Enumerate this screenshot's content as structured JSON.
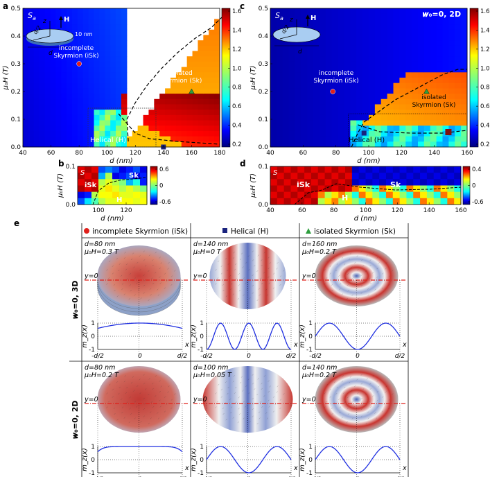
{
  "panel_letters": {
    "a": "a",
    "b": "b",
    "c": "c",
    "d": "d",
    "e": "e"
  },
  "panel_a": {
    "tag": "S",
    "tag_sub": "a",
    "condition": "𝒘₀=0, 3D",
    "ylabel": "μ₀H (T)",
    "xlabel": "d (nm)",
    "xticks": [
      "40",
      "60",
      "80",
      "100",
      "120",
      "140",
      "160",
      "180"
    ],
    "yticks": [
      "0.0",
      "0.1",
      "0.2",
      "0.3",
      "0.4",
      "0.5"
    ],
    "colorbar_ticks": [
      "1.6",
      "1.4",
      "1.2",
      "1.0",
      "0.8",
      "0.6",
      "0.4",
      "0.2"
    ],
    "inset": {
      "z": "z",
      "H": "H",
      "d2": "d/2",
      "thick": "10 nm",
      "d": "d"
    },
    "label_isk": "incomplete\nSkyrmion (iSk)",
    "label_sk": "isolated\nSkyrmion (Sk)",
    "label_h": "Helical (H)"
  },
  "panel_b": {
    "tag": "S",
    "ylabel": "μ₀H (T)",
    "xlabel": "d (nm)",
    "xticks": [
      "100",
      "120"
    ],
    "yticks": [
      "0.0",
      "0.1"
    ],
    "colorbar_ticks": [
      "0.6",
      "0",
      "-0.6"
    ],
    "label_isk": "iSk",
    "label_sk": "Sk",
    "label_h": "H"
  },
  "panel_c": {
    "tag": "S",
    "tag_sub": "a",
    "condition": "𝒘₀=0, 2D",
    "ylabel": "μ₀H (T)",
    "xlabel": "d (nm)",
    "xticks": [
      "40",
      "60",
      "80",
      "100",
      "120",
      "140",
      "160"
    ],
    "yticks": [
      "0.0",
      "0.1",
      "0.2",
      "0.3",
      "0.4",
      "0.5"
    ],
    "colorbar_ticks": [
      "1.6",
      "1.4",
      "1.2",
      "1.0",
      "0.8",
      "0.6",
      "0.4",
      "0.2"
    ],
    "inset": {
      "z": "z",
      "H": "H",
      "d2": "d/2",
      "d": "d"
    },
    "label_isk": "incomplete\nSkyrmion (iSk)",
    "label_sk": "isolated\nSkyrmion (Sk)",
    "label_h": "Helical (H)"
  },
  "panel_d": {
    "tag": "S",
    "ylabel": "μ₀H (T)",
    "xlabel": "d (nm)",
    "xticks": [
      "40",
      "60",
      "80",
      "100",
      "120",
      "140",
      "160"
    ],
    "yticks": [
      "0.0",
      "0.1"
    ],
    "colorbar_ticks": [
      "0.4",
      "0",
      "-0.6"
    ],
    "label_isk": "iSk",
    "label_sk": "Sk",
    "label_h": "H"
  },
  "panel_e": {
    "col_headers": [
      "incomplete Skyrmion (iSk)",
      "Helical (H)",
      "isolated Skyrmion (Sk)"
    ],
    "row_labels": [
      "𝒘₀=0, 3D",
      "𝒘₀=0, 2D"
    ],
    "cells": [
      {
        "d": "d=80 nm",
        "h": "μ₀H=0.3 T"
      },
      {
        "d": "d=140 nm",
        "h": "μ₀H=0 T"
      },
      {
        "d": "d=160 nm",
        "h": "μ₀H=0.2 T"
      },
      {
        "d": "d=80 nm",
        "h": "μ₀H=0.2 T"
      },
      {
        "d": "d=100 nm",
        "h": "μ₀H=0.05 T"
      },
      {
        "d": "d=140 nm",
        "h": "μ₀H=0.2 T"
      }
    ],
    "y0_label": "y=0",
    "mz_label": "m_z(x)",
    "x_label": "x",
    "mz_yticks": [
      "1",
      "0",
      "-1"
    ],
    "mz_xticks": [
      "-d/2",
      "0",
      "d/2"
    ]
  },
  "chart_data": [
    {
      "type": "heatmap",
      "panel": "a",
      "title": "𝒘₀=0, 3D",
      "xlabel": "d (nm)",
      "ylabel": "μ₀H (T)",
      "xlim": [
        40,
        180
      ],
      "ylim": [
        0,
        0.5
      ],
      "colorbar_range": [
        0.2,
        1.7
      ],
      "boundary_d": [
        115,
        114,
        120,
        128,
        138,
        150,
        162,
        174,
        182
      ],
      "boundary_h": [
        0.02,
        0.1,
        0.16,
        0.22,
        0.28,
        0.34,
        0.39,
        0.43,
        0.47
      ],
      "lower_boundary_d": [
        108,
        120,
        130,
        150,
        180
      ],
      "lower_boundary_h": [
        0.12,
        0.05,
        0.03,
        0.02,
        0.01
      ],
      "markers": [
        {
          "state": "iSk",
          "d": 80,
          "h": 0.3
        },
        {
          "state": "H",
          "d": 140,
          "h": 0.0
        },
        {
          "state": "Sk",
          "d": 160,
          "h": 0.2
        }
      ]
    },
    {
      "type": "heatmap",
      "panel": "c",
      "title": "𝒘₀=0, 2D",
      "xlabel": "d (nm)",
      "ylabel": "μ₀H (T)",
      "xlim": [
        40,
        166
      ],
      "ylim": [
        0,
        0.5
      ],
      "colorbar_range": [
        0.2,
        1.7
      ],
      "markers": [
        {
          "state": "iSk",
          "d": 80,
          "h": 0.2
        },
        {
          "state": "H",
          "d": 100,
          "h": 0.05
        },
        {
          "state": "Sk",
          "d": 140,
          "h": 0.2
        }
      ]
    },
    {
      "type": "line",
      "panel": "e",
      "xlabel": "x",
      "ylabel": "m_z(x)",
      "ylim": [
        -1,
        1
      ],
      "series": [
        {
          "name": "iSk 3D",
          "profile": "dome",
          "edge": 0.4
        },
        {
          "name": "H 3D",
          "profile": "cos",
          "periods": 1.5
        },
        {
          "name": "Sk 3D",
          "profile": "cos",
          "periods": 1.0
        },
        {
          "name": "iSk 2D",
          "profile": "flat",
          "edge": 0.4
        },
        {
          "name": "H 2D",
          "profile": "cos",
          "periods": 1.0
        },
        {
          "name": "Sk 2D",
          "profile": "cos",
          "periods": 1.0
        }
      ]
    }
  ]
}
